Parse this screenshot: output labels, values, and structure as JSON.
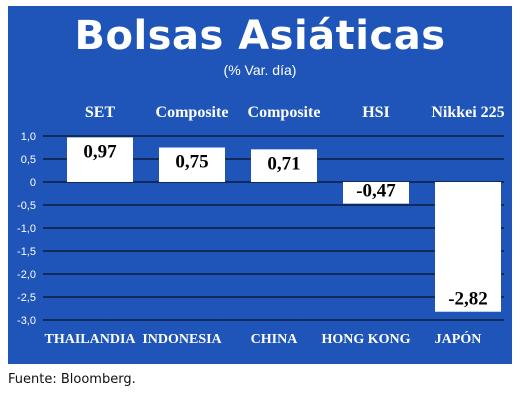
{
  "header": {
    "title": "Bolsas Asiáticas",
    "subtitle": "(% Var. día)"
  },
  "colors": {
    "background": "#1f55b8",
    "bar": "#ffffff",
    "gridline": "#000000",
    "text": "#ffffff"
  },
  "chart_data": {
    "type": "bar",
    "title": "Bolsas Asiáticas",
    "subtitle": "(% Var. día)",
    "index_labels": [
      "SET",
      "Composite",
      "Composite",
      "HSI",
      "Nikkei 225"
    ],
    "categories": [
      "THAILANDIA",
      "INDONESIA",
      "CHINA",
      "HONG KONG",
      "JAPÓN"
    ],
    "values": [
      0.97,
      0.75,
      0.71,
      -0.47,
      -2.82
    ],
    "value_labels": [
      "0,97",
      "0,75",
      "0,71",
      "-0,47",
      "-2,82"
    ],
    "ylim": [
      -3.0,
      1.0
    ],
    "yticks": [
      1.0,
      0.5,
      0,
      -0.5,
      -1.0,
      -1.5,
      -2.0,
      -2.5,
      -3.0
    ],
    "ytick_labels": [
      "1,0",
      "0,5",
      "0",
      "-0,5",
      "-1,0",
      "-1,5",
      "-2,0",
      "-2,5",
      "-3,0"
    ],
    "grid": true
  },
  "footer": {
    "source": "Fuente: Bloomberg."
  }
}
